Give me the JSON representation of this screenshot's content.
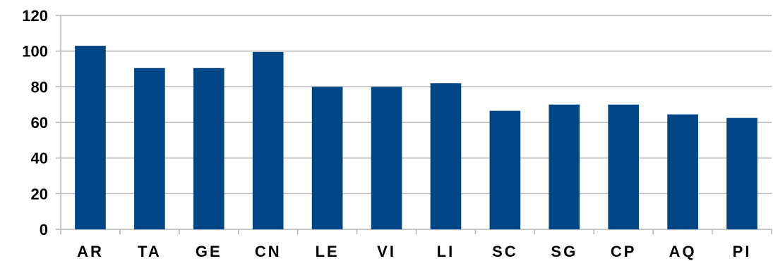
{
  "chart_data": {
    "type": "bar",
    "categories": [
      "AR",
      "TA",
      "GE",
      "CN",
      "LE",
      "VI",
      "LI",
      "SC",
      "SG",
      "CP",
      "AQ",
      "PI"
    ],
    "values": [
      103,
      90.5,
      90.5,
      99.5,
      80,
      80,
      82,
      66.5,
      70,
      70,
      64.5,
      62.5
    ],
    "ylim": [
      0,
      120
    ],
    "yticks": [
      0,
      20,
      40,
      60,
      80,
      100,
      120
    ],
    "ytick_labels": [
      "0",
      "20",
      "40",
      "60",
      "80",
      "100",
      "120"
    ],
    "grid": true,
    "legend": "none",
    "colors": {
      "bar": "#004586",
      "grid": "#b3b3b3",
      "axis": "#b3b3b3"
    }
  }
}
